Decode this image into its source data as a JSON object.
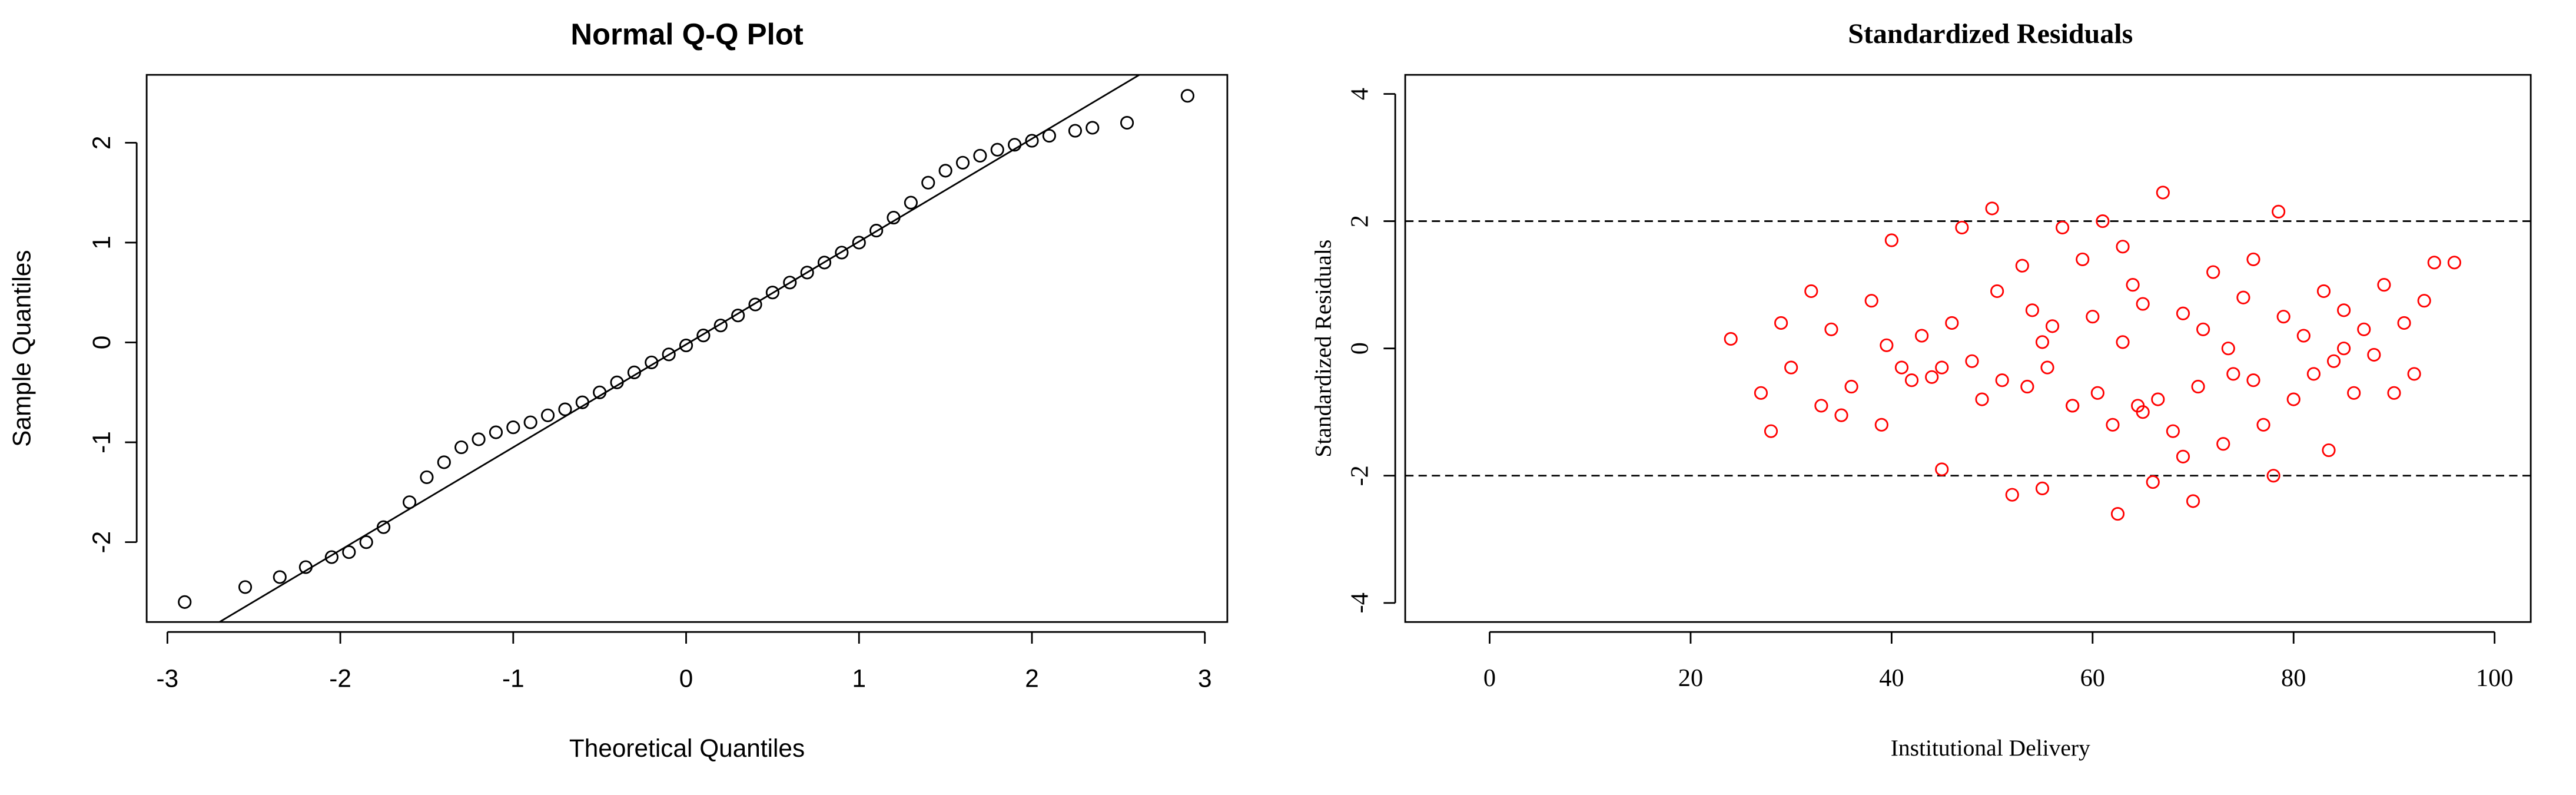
{
  "chart_data": [
    {
      "type": "scatter",
      "title": "Normal Q-Q Plot",
      "x_label": "Theoretical Quantiles",
      "y_label": "Sample Quantiles",
      "xlim": [
        -3.12,
        3.13
      ],
      "ylim": [
        -2.8,
        2.68
      ],
      "xticks": [
        -3,
        -2,
        -1,
        0,
        1,
        2,
        3
      ],
      "yticks": [
        -2,
        -1,
        0,
        1,
        2
      ],
      "color": "#000000",
      "reference_line": {
        "slope": 1.03,
        "intercept": -0.02
      },
      "x": [
        -2.9,
        -2.55,
        -2.35,
        -2.2,
        -2.05,
        -1.95,
        -1.85,
        -1.75,
        -1.6,
        -1.5,
        -1.4,
        -1.3,
        -1.2,
        -1.1,
        -1.0,
        -0.9,
        -0.8,
        -0.7,
        -0.6,
        -0.5,
        -0.4,
        -0.3,
        -0.2,
        -0.1,
        0,
        0.1,
        0.2,
        0.3,
        0.4,
        0.5,
        0.6,
        0.7,
        0.8,
        0.9,
        1.0,
        1.1,
        1.2,
        1.3,
        1.4,
        1.5,
        1.6,
        1.7,
        1.8,
        1.9,
        2.0,
        2.1,
        2.25,
        2.35,
        2.55,
        2.9
      ],
      "y": [
        -2.6,
        -2.45,
        -2.35,
        -2.25,
        -2.15,
        -2.1,
        -2.0,
        -1.85,
        -1.6,
        -1.35,
        -1.2,
        -1.05,
        -0.97,
        -0.9,
        -0.85,
        -0.8,
        -0.73,
        -0.67,
        -0.6,
        -0.5,
        -0.4,
        -0.3,
        -0.2,
        -0.12,
        -0.03,
        0.07,
        0.17,
        0.27,
        0.38,
        0.5,
        0.6,
        0.7,
        0.8,
        0.9,
        1.0,
        1.12,
        1.25,
        1.4,
        1.6,
        1.72,
        1.8,
        1.87,
        1.93,
        1.98,
        2.02,
        2.07,
        2.12,
        2.15,
        2.2,
        2.47
      ]
    },
    {
      "type": "scatter",
      "title": "Standardized Residuals",
      "x_label": "Institutional Delivery",
      "y_label": "Standardized Residuals",
      "xlim": [
        -8.4,
        103.6
      ],
      "ylim": [
        -4.3,
        4.3
      ],
      "xticks": [
        0,
        20,
        40,
        60,
        80,
        100
      ],
      "yticks": [
        -4,
        -2,
        0,
        2,
        4
      ],
      "color": "#ff0000",
      "hlines": [
        -2,
        2
      ],
      "x": [
        24,
        27,
        28,
        29,
        30,
        32,
        33,
        34,
        35,
        36,
        38,
        39,
        39.5,
        40,
        41,
        42,
        43,
        44,
        45,
        46,
        47,
        48,
        49,
        50,
        50.5,
        51,
        52,
        53,
        53.5,
        54,
        55,
        55.5,
        56,
        57,
        58,
        59,
        60,
        60.5,
        61,
        62,
        62.5,
        63,
        64,
        64.5,
        65,
        66,
        66.5,
        67,
        68,
        69,
        70,
        70.5,
        71,
        72,
        73,
        73.5,
        74,
        75,
        76,
        77,
        78,
        78.5,
        79,
        80,
        81,
        82,
        83,
        83.5,
        84,
        85,
        86,
        87,
        88,
        89,
        90,
        91,
        92,
        93,
        94,
        96,
        58,
        63,
        69,
        76,
        85,
        65,
        55,
        45
      ],
      "y": [
        0.15,
        -0.7,
        -1.3,
        0.4,
        -0.3,
        0.9,
        -0.9,
        0.3,
        -1.05,
        -0.6,
        0.75,
        -1.2,
        0.05,
        1.7,
        -0.3,
        -0.5,
        0.2,
        -0.45,
        -1.9,
        0.4,
        1.9,
        -0.2,
        -0.8,
        2.2,
        0.9,
        -0.5,
        -2.3,
        1.3,
        -0.6,
        0.6,
        -2.2,
        -0.3,
        0.35,
        1.9,
        -0.9,
        1.4,
        0.5,
        -0.7,
        2.0,
        -1.2,
        -2.6,
        0.1,
        1.0,
        -0.9,
        0.7,
        -2.1,
        -0.8,
        2.45,
        -1.3,
        0.55,
        -2.4,
        -0.6,
        0.3,
        1.2,
        -1.5,
        0.0,
        -0.4,
        0.8,
        -0.5,
        -1.2,
        -2.0,
        2.15,
        0.5,
        -0.8,
        0.2,
        -0.4,
        0.9,
        -1.6,
        -0.2,
        0.6,
        -0.7,
        0.3,
        -0.1,
        1.0,
        -0.7,
        0.4,
        -0.4,
        0.75,
        1.35,
        1.35,
        -0.9,
        1.6,
        -1.7,
        1.4,
        0.0,
        -1.0,
        0.1,
        -0.3
      ]
    }
  ]
}
